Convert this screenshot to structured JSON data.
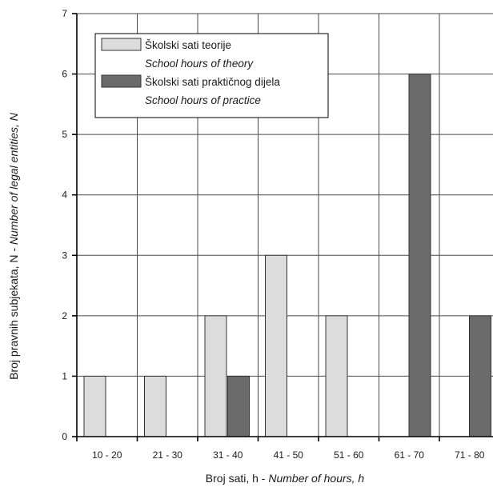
{
  "chart_data": {
    "type": "bar",
    "categories": [
      "10 - 20",
      "21 - 30",
      "31 - 40",
      "41 - 50",
      "51 - 60",
      "61 - 70",
      "71 - 80"
    ],
    "series": [
      {
        "name": "Školski sati teorije",
        "name_en": "School hours of theory",
        "values": [
          1,
          1,
          2,
          3,
          2,
          0,
          0
        ],
        "color": "#dcdcdc"
      },
      {
        "name": "Školski sati praktičnog dijela",
        "name_en": "School hours of practice",
        "values": [
          0,
          0,
          1,
          0,
          0,
          6,
          2
        ],
        "color": "#6b6b6b"
      }
    ],
    "xlabel": "Broj sati, h - ",
    "xlabel_en": "Number of hours, h",
    "ylabel": "Broj pravnih subjekata, N - ",
    "ylabel_en": "Number of legal entities, N",
    "ylim": [
      0,
      7
    ],
    "yticks": [
      0,
      1,
      2,
      3,
      4,
      5,
      6,
      7
    ],
    "grid": true,
    "legend_position": "top-left"
  }
}
